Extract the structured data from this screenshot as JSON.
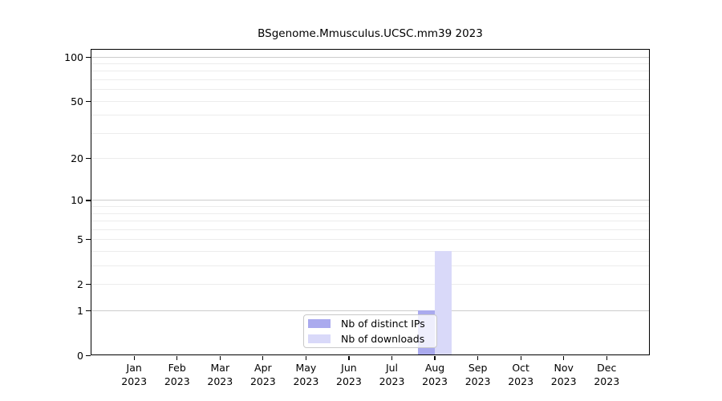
{
  "chart_data": {
    "type": "bar",
    "title": "BSgenome.Mmusculus.UCSC.mm39 2023",
    "x": {
      "months": [
        "Jan",
        "Feb",
        "Mar",
        "Apr",
        "May",
        "Jun",
        "Jul",
        "Aug",
        "Sep",
        "Oct",
        "Nov",
        "Dec"
      ],
      "year_label": "2023"
    },
    "series": [
      {
        "name": "Nb of distinct IPs",
        "color": "#aaaaee",
        "values": [
          0,
          0,
          0,
          0,
          0,
          0,
          0,
          1,
          0,
          0,
          0,
          0
        ]
      },
      {
        "name": "Nb of downloads",
        "color": "#d9d9f9",
        "values": [
          0,
          0,
          0,
          0,
          0,
          0,
          0,
          4,
          0,
          0,
          0,
          0
        ]
      }
    ],
    "y_axis": {
      "scale": "log1p",
      "ticks": [
        0,
        1,
        2,
        5,
        10,
        20,
        50,
        100
      ],
      "max": 100,
      "minor_gridlines": [
        2,
        3,
        4,
        5,
        6,
        7,
        8,
        9,
        20,
        30,
        40,
        50,
        60,
        70,
        80,
        90
      ],
      "major_gridlines": [
        1,
        10,
        100
      ]
    },
    "legend": {
      "position": "bottom-center"
    },
    "colors": {
      "axis": "#000000",
      "grid_minor": "#ececec",
      "grid_major": "#cccccc",
      "background": "#ffffff"
    }
  }
}
